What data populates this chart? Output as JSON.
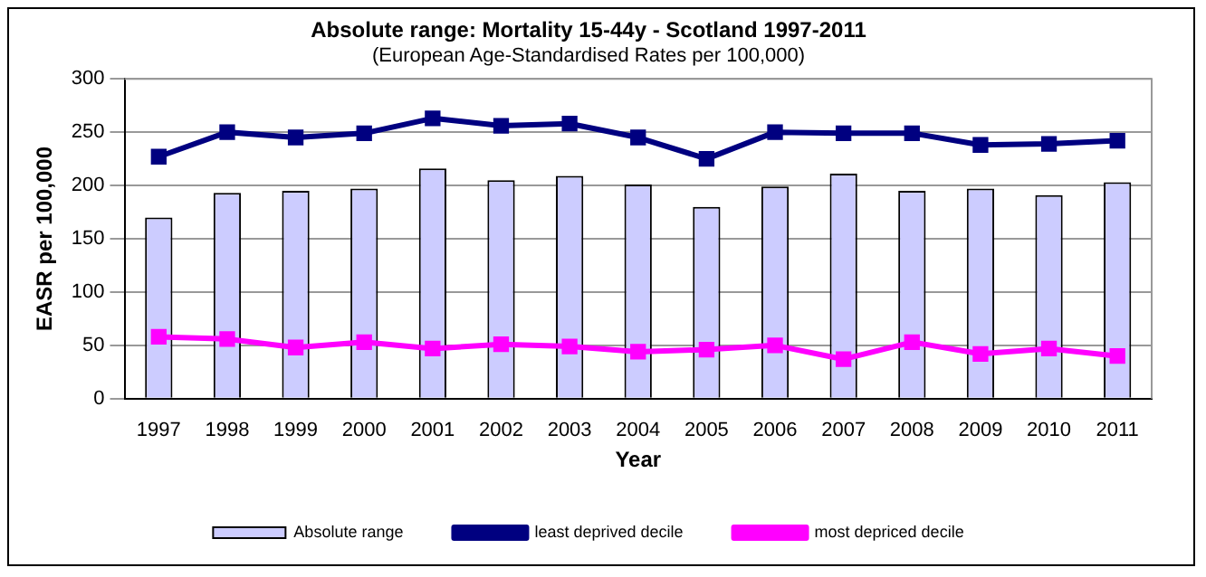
{
  "chart_data": {
    "type": "bar",
    "title": "Absolute range: Mortality 15-44y - Scotland 1997-2011",
    "subtitle": "(European Age-Standardised Rates per 100,000)",
    "xlabel": "Year",
    "ylabel": "EASR per 100,000",
    "categories": [
      "1997",
      "1998",
      "1999",
      "2000",
      "2001",
      "2002",
      "2003",
      "2004",
      "2005",
      "2006",
      "2007",
      "2008",
      "2009",
      "2010",
      "2011"
    ],
    "series": [
      {
        "name": "Absolute range",
        "color": "#ccccff",
        "values": [
          170,
          193,
          195,
          197,
          216,
          205,
          209,
          201,
          180,
          199,
          211,
          195,
          197,
          191,
          203
        ]
      },
      {
        "name": "least deprived decile",
        "type": "line",
        "color": "#000080",
        "values": [
          227,
          250,
          245,
          249,
          263,
          256,
          258,
          245,
          225,
          250,
          249,
          249,
          238,
          239,
          242
        ]
      },
      {
        "name": "most depriced decile",
        "type": "line",
        "color": "#ff00ff",
        "values": [
          58,
          56,
          48,
          53,
          47,
          51,
          49,
          44,
          46,
          50,
          37,
          53,
          42,
          47,
          40
        ]
      }
    ],
    "ylim": [
      0,
      300
    ],
    "yticks": [
      0,
      50,
      100,
      150,
      200,
      250,
      300
    ],
    "grid": "y",
    "legend": "bottom",
    "marker": "square",
    "line_style": "solid"
  }
}
